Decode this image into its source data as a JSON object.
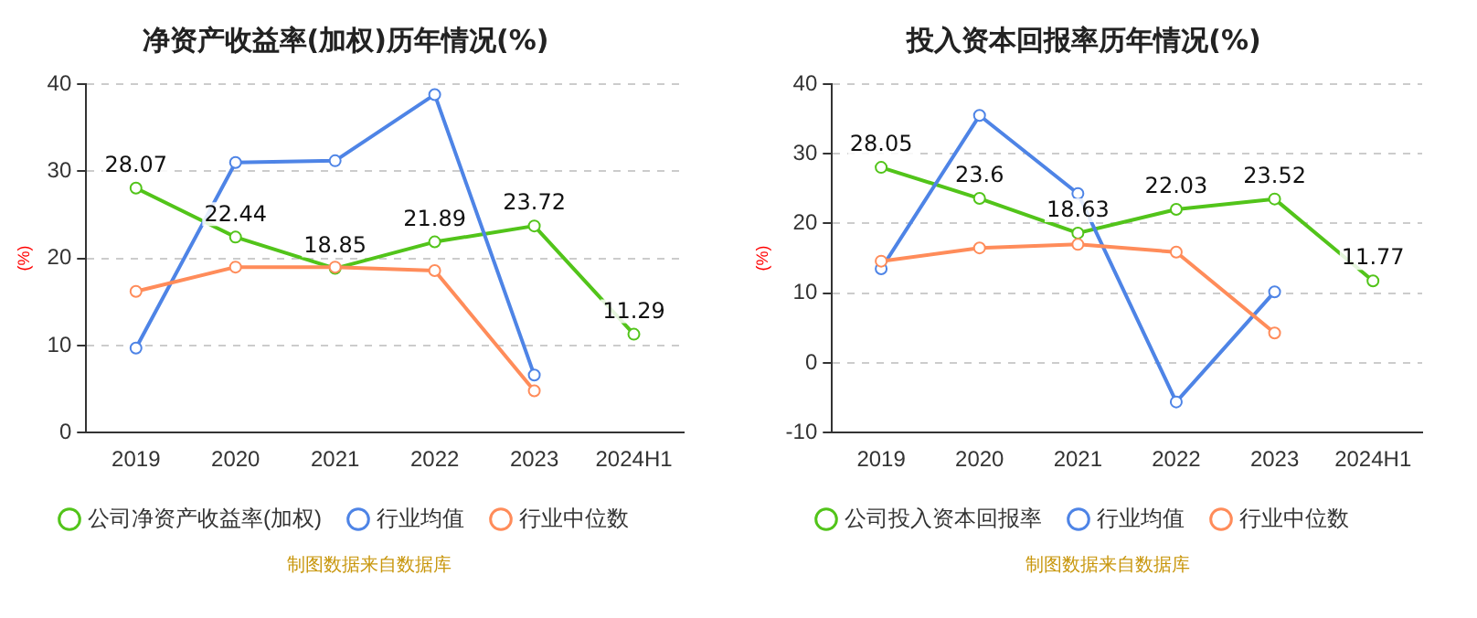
{
  "chart_data": [
    {
      "type": "line",
      "title": "净资产收益率(加权)历年情况(%)",
      "ylabel": "(%)",
      "categories": [
        "2019",
        "2020",
        "2021",
        "2022",
        "2023",
        "2024H1"
      ],
      "series": [
        {
          "name": "公司净资产收益率(加权)",
          "color": "#52c41a",
          "values": [
            28.07,
            22.44,
            18.85,
            21.89,
            23.72,
            11.29
          ],
          "value_labels": [
            "28.07",
            "22.44",
            "18.85",
            "21.89",
            "23.72",
            "11.29"
          ]
        },
        {
          "name": "行业均值",
          "color": "#4e84e6",
          "values": [
            9.7,
            31.0,
            31.2,
            38.8,
            6.6,
            null
          ]
        },
        {
          "name": "行业中位数",
          "color": "#ff8c5a",
          "values": [
            16.2,
            19.0,
            19.0,
            18.6,
            4.8,
            null
          ]
        }
      ],
      "ylim": [
        0,
        40
      ],
      "yticks": [
        0,
        10,
        20,
        30,
        40
      ],
      "grid": "y",
      "legend": "bottom",
      "marker": "circle",
      "annotations": [
        "制图数据来自数据库"
      ]
    },
    {
      "type": "line",
      "title": "投入资本回报率历年情况(%)",
      "ylabel": "(%)",
      "categories": [
        "2019",
        "2020",
        "2021",
        "2022",
        "2023",
        "2024H1"
      ],
      "series": [
        {
          "name": "公司投入资本回报率",
          "color": "#52c41a",
          "values": [
            28.05,
            23.6,
            18.63,
            22.03,
            23.52,
            11.77
          ],
          "value_labels": [
            "28.05",
            "23.6",
            "18.63",
            "22.03",
            "23.52",
            "11.77"
          ]
        },
        {
          "name": "行业均值",
          "color": "#4e84e6",
          "values": [
            13.5,
            35.5,
            24.3,
            -5.6,
            10.2,
            null
          ]
        },
        {
          "name": "行业中位数",
          "color": "#ff8c5a",
          "values": [
            14.6,
            16.5,
            17.0,
            15.9,
            4.3,
            null
          ]
        }
      ],
      "ylim": [
        -10,
        40
      ],
      "yticks": [
        -10,
        0,
        10,
        20,
        30,
        40
      ],
      "grid": "y",
      "legend": "bottom",
      "marker": "circle",
      "annotations": [
        "制图数据来自数据库"
      ]
    }
  ]
}
